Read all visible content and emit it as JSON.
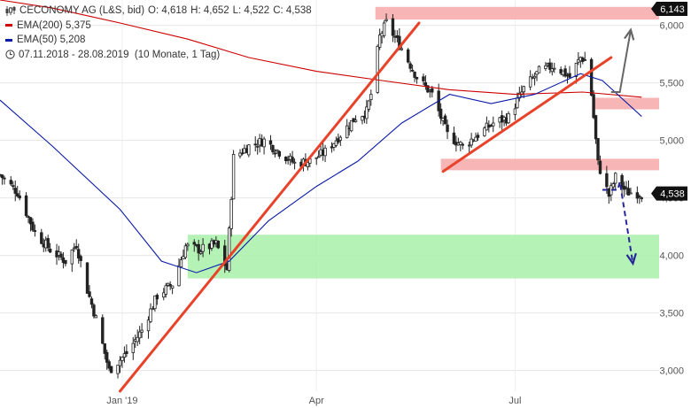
{
  "colors": {
    "candle": "#222222",
    "ema200": "#cc0000",
    "ema50": "#0a1aa8",
    "resistance_zone": "#f7a8a8",
    "support_zone": "#a8f0a8",
    "trendline": "#e8432a",
    "forecast_up": "#666666",
    "forecast_down": "#27279a",
    "price_badge": "#111111"
  },
  "legend": {
    "chart_icon": "candlestick-chart-icon",
    "title": "CECONOMY AG (L&S, bid)",
    "open": "O: 4,618",
    "high": "H: 4,652",
    "low": "L: 4,522",
    "close": "C: 4,538",
    "ema200_label": "EMA(200)",
    "ema200_value": "5,375",
    "ema50_label": "EMA(50)",
    "ema50_value": "5,208",
    "clock_icon": "clock-icon",
    "period": "07.11.2018 - 28.08.2019",
    "interval": "(10 Monate, 1 Tag)"
  },
  "chart_data": {
    "type": "candlestick",
    "title": "CECONOMY AG (L&S, bid)",
    "x_range": [
      "2018-11-07",
      "2019-08-28"
    ],
    "ylim": [
      2.82,
      6.22
    ],
    "x_ticks": [
      {
        "label": "Jan '19",
        "date": "2019-01-02"
      },
      {
        "label": "Apr",
        "date": "2019-04-01"
      },
      {
        "label": "Jul",
        "date": "2019-07-01"
      }
    ],
    "y_ticks": [
      {
        "label": "3,000",
        "value": 3.0
      },
      {
        "label": "3,500",
        "value": 3.5
      },
      {
        "label": "4,000",
        "value": 4.0
      },
      {
        "label": "4,500",
        "value": 4.5
      },
      {
        "label": "5,000",
        "value": 5.0
      },
      {
        "label": "5,500",
        "value": 5.5
      },
      {
        "label": "6,000",
        "value": 6.0
      }
    ],
    "price_markers": [
      {
        "label": "6,143",
        "value": 6.143
      },
      {
        "label": "4,538",
        "value": 4.538
      }
    ],
    "close_path": [
      [
        "2018-11-07",
        4.7
      ],
      [
        "2018-11-15",
        4.55
      ],
      [
        "2018-11-23",
        4.2
      ],
      [
        "2018-11-30",
        4.05
      ],
      [
        "2018-12-07",
        3.95
      ],
      [
        "2018-12-12",
        4.1
      ],
      [
        "2018-12-17",
        3.7
      ],
      [
        "2018-12-21",
        3.45
      ],
      [
        "2018-12-27",
        3.0
      ],
      [
        "2019-01-04",
        3.15
      ],
      [
        "2019-01-11",
        3.35
      ],
      [
        "2019-01-18",
        3.65
      ],
      [
        "2019-01-25",
        3.75
      ],
      [
        "2019-01-31",
        4.08
      ],
      [
        "2019-02-07",
        4.05
      ],
      [
        "2019-02-14",
        4.1
      ],
      [
        "2019-02-19",
        3.88
      ],
      [
        "2019-02-22",
        4.85
      ],
      [
        "2019-03-01",
        4.95
      ],
      [
        "2019-03-08",
        5.0
      ],
      [
        "2019-03-15",
        4.9
      ],
      [
        "2019-03-22",
        4.8
      ],
      [
        "2019-03-29",
        4.82
      ],
      [
        "2019-04-05",
        4.9
      ],
      [
        "2019-04-12",
        5.05
      ],
      [
        "2019-04-19",
        5.2
      ],
      [
        "2019-04-24",
        5.25
      ],
      [
        "2019-04-26",
        5.4
      ],
      [
        "2019-04-30",
        5.9
      ],
      [
        "2019-05-03",
        6.02
      ],
      [
        "2019-05-10",
        5.8
      ],
      [
        "2019-05-17",
        5.55
      ],
      [
        "2019-05-24",
        5.4
      ],
      [
        "2019-05-31",
        5.05
      ],
      [
        "2019-06-07",
        4.95
      ],
      [
        "2019-06-14",
        5.05
      ],
      [
        "2019-06-21",
        5.15
      ],
      [
        "2019-06-28",
        5.2
      ],
      [
        "2019-07-05",
        5.45
      ],
      [
        "2019-07-12",
        5.6
      ],
      [
        "2019-07-19",
        5.65
      ],
      [
        "2019-07-26",
        5.55
      ],
      [
        "2019-07-31",
        5.72
      ],
      [
        "2019-08-02",
        5.7
      ],
      [
        "2019-08-05",
        5.4
      ],
      [
        "2019-08-08",
        4.8
      ],
      [
        "2019-08-13",
        4.52
      ],
      [
        "2019-08-16",
        4.68
      ],
      [
        "2019-08-21",
        4.55
      ],
      [
        "2019-08-28",
        4.538
      ]
    ],
    "ema200": [
      [
        "2018-11-07",
        6.22
      ],
      [
        "2018-12-01",
        6.15
      ],
      [
        "2019-01-01",
        6.02
      ],
      [
        "2019-02-01",
        5.88
      ],
      [
        "2019-03-01",
        5.72
      ],
      [
        "2019-04-01",
        5.6
      ],
      [
        "2019-05-01",
        5.52
      ],
      [
        "2019-06-01",
        5.44
      ],
      [
        "2019-07-01",
        5.4
      ],
      [
        "2019-08-01",
        5.42
      ],
      [
        "2019-08-28",
        5.375
      ]
    ],
    "ema50": [
      [
        "2018-11-07",
        5.35
      ],
      [
        "2018-12-01",
        4.95
      ],
      [
        "2019-01-01",
        4.4
      ],
      [
        "2019-01-20",
        3.95
      ],
      [
        "2019-02-05",
        3.85
      ],
      [
        "2019-02-20",
        3.95
      ],
      [
        "2019-03-10",
        4.3
      ],
      [
        "2019-04-01",
        4.6
      ],
      [
        "2019-04-20",
        4.82
      ],
      [
        "2019-05-10",
        5.15
      ],
      [
        "2019-06-01",
        5.4
      ],
      [
        "2019-06-20",
        5.32
      ],
      [
        "2019-07-10",
        5.4
      ],
      [
        "2019-07-31",
        5.58
      ],
      [
        "2019-08-10",
        5.52
      ],
      [
        "2019-08-28",
        5.208
      ]
    ],
    "zones": [
      {
        "kind": "resistance",
        "from_date": "2019-04-28",
        "to_date": "2019-09-05",
        "low": 6.05,
        "high": 6.16
      },
      {
        "kind": "resistance",
        "from_date": "2019-08-06",
        "to_date": "2019-09-05",
        "low": 5.27,
        "high": 5.37
      },
      {
        "kind": "resistance",
        "from_date": "2019-05-28",
        "to_date": "2019-09-05",
        "low": 4.74,
        "high": 4.84
      },
      {
        "kind": "support",
        "from_date": "2019-02-01",
        "to_date": "2019-09-05",
        "low": 3.8,
        "high": 4.18
      }
    ],
    "trendlines": [
      {
        "from": [
          "2019-01-01",
          2.82
        ],
        "to": [
          "2019-05-18",
          6.02
        ]
      },
      {
        "from": [
          "2019-05-29",
          4.73
        ],
        "to": [
          "2019-08-14",
          5.72
        ]
      }
    ],
    "forecasts": [
      {
        "direction": "up",
        "style": "solid",
        "points": [
          [
            "2019-08-14",
            5.42
          ],
          [
            "2019-08-18",
            5.42
          ],
          [
            "2019-08-23",
            5.96
          ]
        ]
      },
      {
        "direction": "down",
        "style": "dashed",
        "points": [
          [
            "2019-08-10",
            4.57
          ],
          [
            "2019-08-17",
            4.57
          ],
          [
            "2019-08-18",
            4.64
          ],
          [
            "2019-08-24",
            3.93
          ]
        ]
      }
    ]
  }
}
